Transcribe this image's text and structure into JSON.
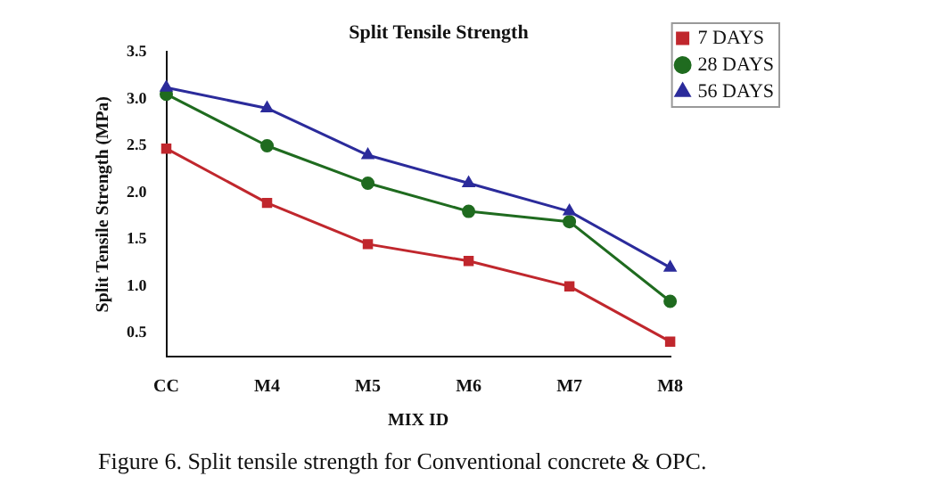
{
  "chart_data": {
    "type": "line",
    "title": "Split Tensile Strength",
    "xlabel": "MIX ID",
    "ylabel": "Split Tensile Strength (MPa)",
    "categories": [
      "CC",
      "M4",
      "M5",
      "M6",
      "M7",
      "M8"
    ],
    "series": [
      {
        "name": "7 DAYS",
        "color": "#c0272d",
        "marker": "square",
        "values": [
          2.47,
          1.89,
          1.45,
          1.27,
          1.0,
          0.41
        ]
      },
      {
        "name": "28 DAYS",
        "color": "#1f6b1f",
        "marker": "circle",
        "values": [
          3.05,
          2.5,
          2.1,
          1.8,
          1.69,
          0.84
        ]
      },
      {
        "name": "56 DAYS",
        "color": "#2b2b9b",
        "marker": "triangle",
        "values": [
          3.12,
          2.9,
          2.4,
          2.1,
          1.8,
          1.2
        ]
      }
    ],
    "ylim": [
      0.25,
      3.5
    ],
    "yticks": [
      0.5,
      {
        "value": 1,
        "label": "1.0"
      },
      1.5,
      {
        "value": 2,
        "label": "2.0"
      },
      2.5,
      {
        "value": 3,
        "label": "3.0"
      },
      3.5
    ],
    "grid": false,
    "legend": "top right",
    "line_style": "solid",
    "annotations": [
      "Figure 6. Split tensile strength for Conventional concrete & OPC."
    ]
  }
}
